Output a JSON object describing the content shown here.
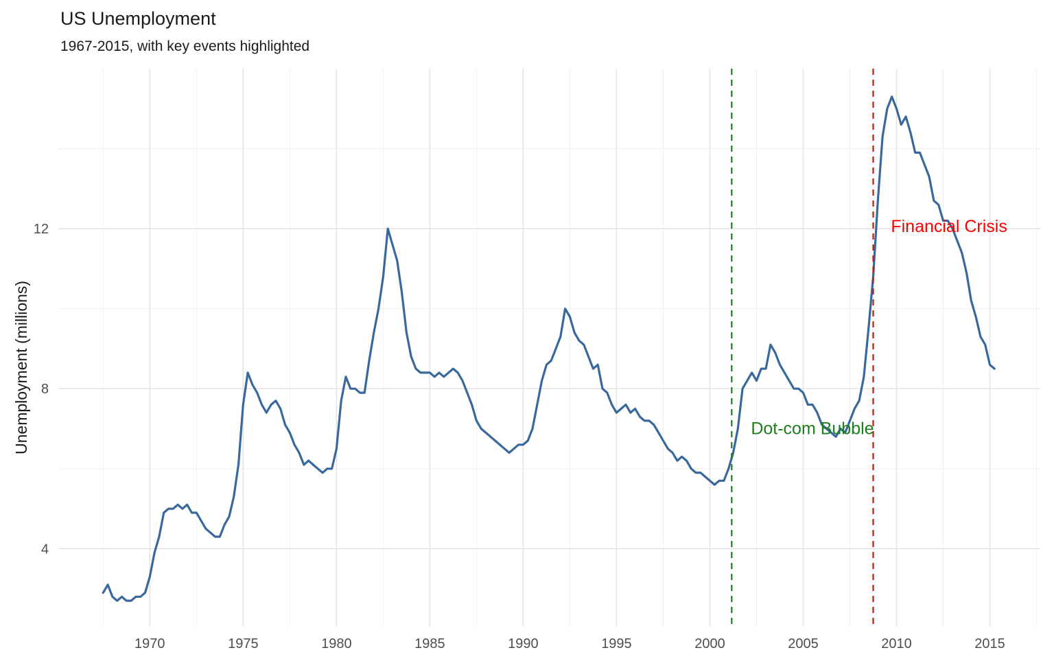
{
  "chart_data": {
    "type": "line",
    "title": "US Unemployment",
    "subtitle": "1967-2015, with key events highlighted",
    "xlabel": "",
    "ylabel": "Unemployment (millions)",
    "x_ticks": [
      1970,
      1975,
      1980,
      1985,
      1990,
      1995,
      2000,
      2005,
      2010,
      2015
    ],
    "x_minor_ticks": [
      1967.5,
      1972.5,
      1977.5,
      1982.5,
      1987.5,
      1992.5,
      1997.5,
      2002.5,
      2007.5,
      2012.5,
      2017.5
    ],
    "y_ticks": [
      4,
      8,
      12
    ],
    "y_minor_ticks": [
      2,
      6,
      10,
      14
    ],
    "xlim": [
      1965.1,
      2017.7
    ],
    "ylim": [
      2.05,
      16.0
    ],
    "grid": true,
    "legend": "none",
    "line_color": "#38689c",
    "grid_major_color": "#e2e2e2",
    "grid_minor_color": "#ededed",
    "tick_label_color": "#4d4d4d",
    "series": [
      {
        "name": "US unemployment (millions)",
        "x_start": 1967.5,
        "x_step": 0.25,
        "x_unit": "decimal year, quarterly samples estimated from plot",
        "values": [
          2.9,
          3.1,
          2.8,
          2.7,
          2.8,
          2.7,
          2.7,
          2.8,
          2.8,
          2.9,
          3.3,
          3.9,
          4.3,
          4.9,
          5.0,
          5.0,
          5.1,
          5.0,
          5.1,
          4.9,
          4.9,
          4.7,
          4.5,
          4.4,
          4.3,
          4.3,
          4.6,
          4.8,
          5.3,
          6.1,
          7.6,
          8.4,
          8.1,
          7.9,
          7.6,
          7.4,
          7.6,
          7.7,
          7.5,
          7.1,
          6.9,
          6.6,
          6.4,
          6.1,
          6.2,
          6.1,
          6.0,
          5.9,
          6.0,
          6.0,
          6.5,
          7.7,
          8.3,
          8.0,
          8.0,
          7.9,
          7.9,
          8.7,
          9.4,
          10.0,
          10.8,
          12.0,
          11.6,
          11.2,
          10.4,
          9.4,
          8.8,
          8.5,
          8.4,
          8.4,
          8.4,
          8.3,
          8.4,
          8.3,
          8.4,
          8.5,
          8.4,
          8.2,
          7.9,
          7.6,
          7.2,
          7.0,
          6.9,
          6.8,
          6.7,
          6.6,
          6.5,
          6.4,
          6.5,
          6.6,
          6.6,
          6.7,
          7.0,
          7.6,
          8.2,
          8.6,
          8.7,
          9.0,
          9.3,
          10.0,
          9.8,
          9.4,
          9.2,
          9.1,
          8.8,
          8.5,
          8.6,
          8.0,
          7.9,
          7.6,
          7.4,
          7.5,
          7.6,
          7.4,
          7.5,
          7.3,
          7.2,
          7.2,
          7.1,
          6.9,
          6.7,
          6.5,
          6.4,
          6.2,
          6.3,
          6.2,
          6.0,
          5.9,
          5.9,
          5.8,
          5.7,
          5.6,
          5.7,
          5.7,
          6.0,
          6.4,
          7.0,
          8.0,
          8.2,
          8.4,
          8.2,
          8.5,
          8.5,
          9.1,
          8.9,
          8.6,
          8.4,
          8.2,
          8.0,
          8.0,
          7.9,
          7.6,
          7.6,
          7.4,
          7.1,
          7.0,
          6.9,
          6.8,
          7.0,
          6.9,
          7.2,
          7.5,
          7.7,
          8.3,
          9.5,
          10.8,
          12.7,
          14.3,
          15.0,
          15.3,
          15.0,
          14.6,
          14.8,
          14.4,
          13.9,
          13.9,
          13.6,
          13.3,
          12.7,
          12.6,
          12.2,
          12.2,
          12.0,
          11.7,
          11.4,
          10.9,
          10.2,
          9.8,
          9.3,
          9.1,
          8.6,
          8.5
        ]
      }
    ],
    "events": [
      {
        "name": "dot-com-bubble",
        "label": "Dot-com Bubble",
        "x": 2001.17,
        "color": "#1e7d1e",
        "label_x": 2002.2,
        "label_y": 7.0
      },
      {
        "name": "financial-crisis",
        "label": "Financial Crisis",
        "x": 2008.75,
        "color": "#ff0000",
        "label_x": 2009.7,
        "label_y": 12.05
      }
    ]
  }
}
